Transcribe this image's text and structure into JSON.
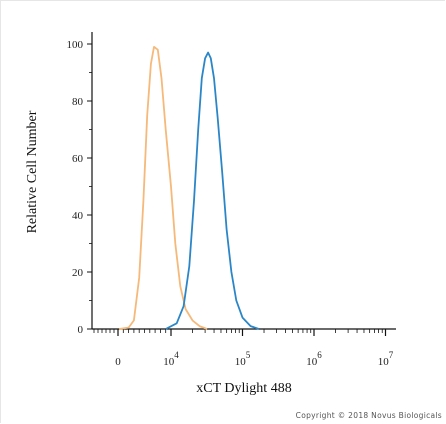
{
  "chart_data": {
    "type": "line",
    "xlabel": "xCT Dylight 488",
    "ylabel": "Relative Cell Number",
    "x_scale": "biexponential",
    "x_ticks": [
      {
        "value": 0,
        "label": "0",
        "exp": ""
      },
      {
        "value": 10000,
        "label": "10",
        "exp": "4"
      },
      {
        "value": 100000,
        "label": "10",
        "exp": "5"
      },
      {
        "value": 1000000,
        "label": "10",
        "exp": "6"
      },
      {
        "value": 10000000,
        "label": "10",
        "exp": "7"
      }
    ],
    "ylim": [
      0,
      100
    ],
    "y_ticks": [
      0,
      20,
      40,
      60,
      80,
      100
    ],
    "grid": false,
    "legend": "none",
    "series": [
      {
        "color": "#f5b97a",
        "points": [
          [
            200,
            0
          ],
          [
            2000,
            0.5
          ],
          [
            3000,
            3
          ],
          [
            4000,
            18
          ],
          [
            4800,
            45
          ],
          [
            5500,
            75
          ],
          [
            6200,
            93
          ],
          [
            6800,
            99
          ],
          [
            7500,
            98
          ],
          [
            8200,
            88
          ],
          [
            9000,
            70
          ],
          [
            10000,
            50
          ],
          [
            11500,
            30
          ],
          [
            13500,
            15
          ],
          [
            16000,
            7
          ],
          [
            20000,
            3
          ],
          [
            25000,
            1
          ],
          [
            32000,
            0
          ]
        ]
      },
      {
        "color": "#2b86c8",
        "points": [
          [
            9000,
            0
          ],
          [
            12000,
            2
          ],
          [
            15000,
            8
          ],
          [
            18000,
            22
          ],
          [
            21000,
            45
          ],
          [
            24000,
            70
          ],
          [
            27000,
            88
          ],
          [
            30000,
            95
          ],
          [
            33000,
            97
          ],
          [
            36000,
            95
          ],
          [
            40000,
            88
          ],
          [
            45000,
            74
          ],
          [
            52000,
            55
          ],
          [
            60000,
            35
          ],
          [
            70000,
            20
          ],
          [
            82000,
            10
          ],
          [
            100000,
            4
          ],
          [
            130000,
            1
          ],
          [
            170000,
            0
          ]
        ]
      }
    ]
  },
  "copyright": "Copyright © 2018 Novus Biologicals"
}
